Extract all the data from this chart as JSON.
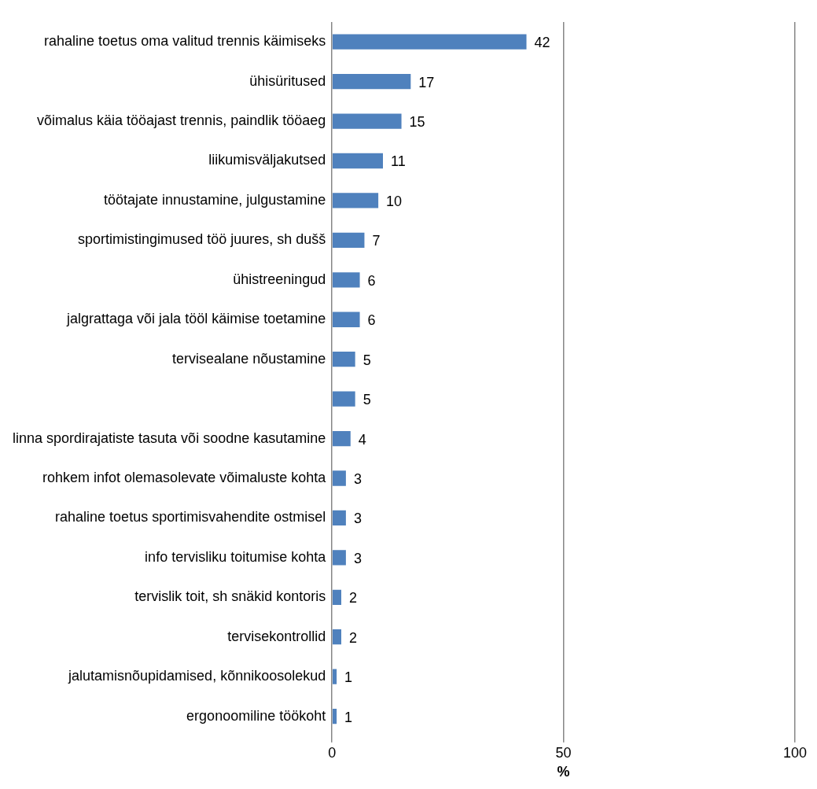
{
  "chart_data": {
    "type": "bar",
    "orientation": "horizontal",
    "xlabel": "%",
    "categories": [
      "rahaline toetus oma valitud trennis käimiseks",
      "ühisüritused",
      "võimalus käia tööajast trennis, paindlik tööaeg",
      "liikumisväljakutsed",
      "töötajate innustamine, julgustamine",
      "sportimistingimused töö juures, sh dušš",
      "ühistreeningud",
      "jalgrattaga või jala tööl käimise toetamine",
      "tervisealane nõustamine",
      null,
      "linna spordirajatiste tasuta või soodne kasutamine",
      "rohkem infot olemasolevate võimaluste kohta",
      "rahaline toetus sportimisvahendite ostmisel",
      "info tervisliku toitumise kohta",
      "tervislik toit, sh snäkid kontoris",
      "tervisekontrollid",
      "jalutamisnõupidamised, kõnnikoosolekud",
      "ergonoomiline töökoht"
    ],
    "values": [
      42,
      17,
      15,
      11,
      10,
      7,
      6,
      6,
      5,
      5,
      4,
      3,
      3,
      3,
      2,
      2,
      1,
      1
    ],
    "color": "#4f81bd",
    "xlim": [
      0,
      100
    ],
    "xticks": [
      0,
      50,
      100
    ],
    "grid": "x",
    "data_labels": true,
    "legend": false
  }
}
